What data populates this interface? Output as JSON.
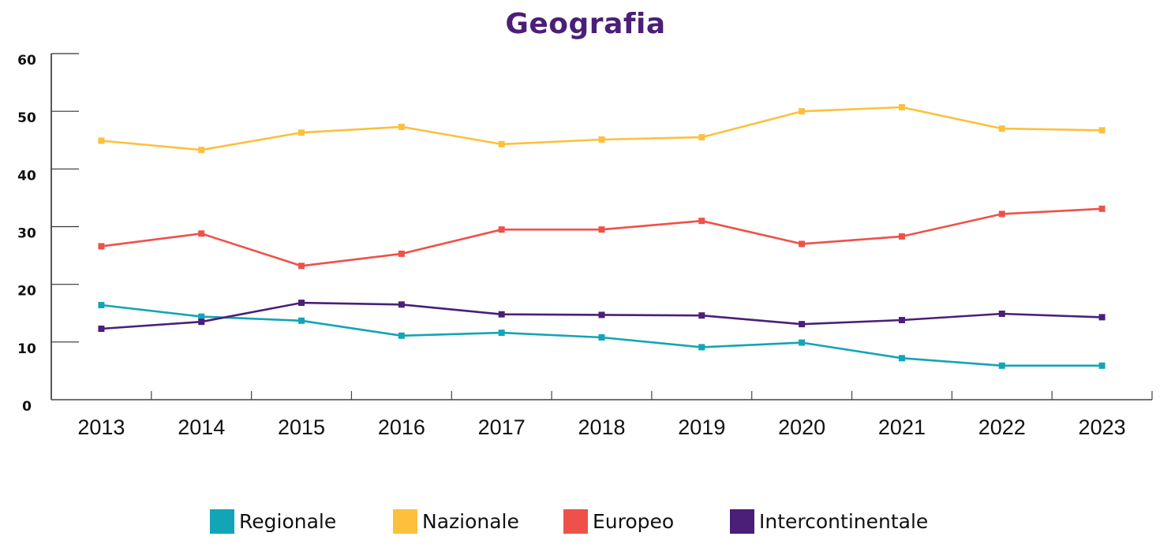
{
  "chart_data": {
    "type": "line",
    "title": "Geografia",
    "xlabel": "",
    "ylabel": "",
    "categories": [
      "2013",
      "2014",
      "2015",
      "2016",
      "2017",
      "2018",
      "2019",
      "2020",
      "2021",
      "2022",
      "2023"
    ],
    "ylim": [
      0,
      60
    ],
    "yticks": [
      "0",
      "10",
      "20",
      "30",
      "40",
      "50",
      "60"
    ],
    "grid": false,
    "legend_position": "bottom",
    "series": [
      {
        "name": "Regionale",
        "color": "#12a5b5",
        "values": [
          16.4,
          14.4,
          13.7,
          11.1,
          11.6,
          10.8,
          9.1,
          9.9,
          7.2,
          5.9,
          5.9
        ]
      },
      {
        "name": "Nazionale",
        "color": "#fcc03d",
        "values": [
          44.9,
          43.3,
          46.3,
          47.3,
          44.3,
          45.1,
          45.5,
          50.0,
          50.7,
          47.0,
          46.7
        ]
      },
      {
        "name": "Europeo",
        "color": "#ee5149",
        "values": [
          26.6,
          28.8,
          23.2,
          25.3,
          29.5,
          29.5,
          31.0,
          27.0,
          28.3,
          32.2,
          33.1
        ]
      },
      {
        "name": "Intercontinentale",
        "color": "#4b1f78",
        "values": [
          12.3,
          13.5,
          16.8,
          16.5,
          14.8,
          14.7,
          14.6,
          13.1,
          13.8,
          14.9,
          14.3
        ]
      }
    ]
  }
}
